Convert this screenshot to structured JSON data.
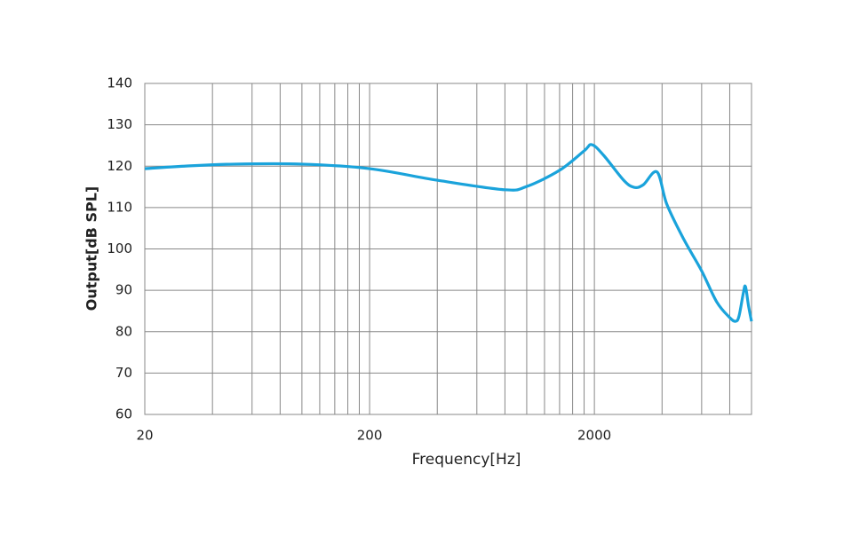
{
  "chart_data": {
    "type": "line",
    "x_label": "Frequency[Hz]",
    "y_label": "Output[dB SPL]",
    "log_x": true,
    "grid": true,
    "xlim": [
      20,
      10000
    ],
    "ylim": [
      60,
      140
    ],
    "xticks": [
      20,
      200,
      2000
    ],
    "x_minor_grid": [
      40,
      60,
      80,
      100,
      120,
      140,
      160,
      180,
      400,
      600,
      800,
      1000,
      1200,
      1400,
      1600,
      1800,
      4000,
      6000,
      8000
    ],
    "yticks": [
      60,
      70,
      80,
      90,
      100,
      110,
      120,
      130,
      140
    ],
    "series": [
      {
        "color": "#1aa3db",
        "x": [
          20,
          30,
          50,
          100,
          200,
          400,
          800,
          1000,
          1400,
          1800,
          1950,
          2200,
          2700,
          3000,
          3300,
          3800,
          4200,
          5000,
          6000,
          7000,
          8000,
          8500,
          8800,
          9200,
          9400,
          9700,
          10000
        ],
        "values": [
          119.4,
          120.0,
          120.5,
          120.5,
          119.4,
          116.6,
          114.3,
          115.1,
          119.0,
          123.7,
          125.2,
          122.6,
          116.6,
          114.9,
          115.5,
          118.6,
          110.8,
          102.3,
          94.7,
          87.2,
          83.4,
          82.5,
          83.8,
          89.4,
          90.9,
          86.2,
          82.5
        ]
      }
    ]
  }
}
